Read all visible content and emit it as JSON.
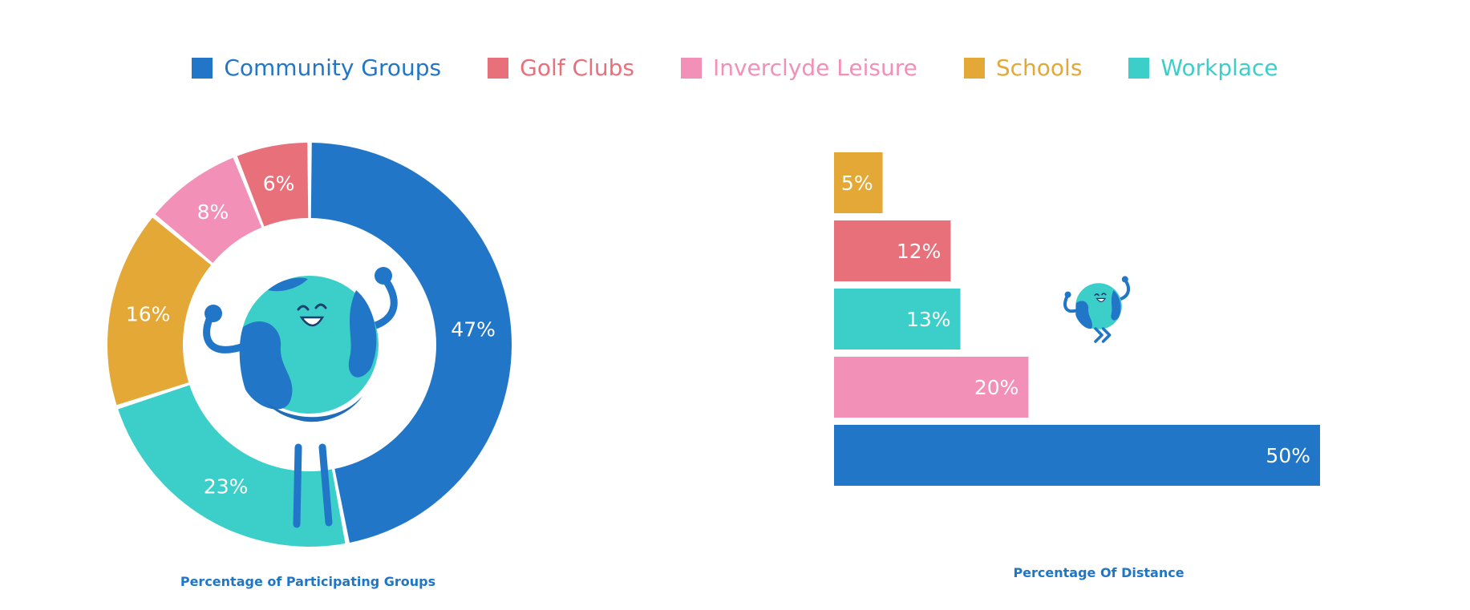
{
  "legend": [
    {
      "label": "Community Groups",
      "color": "#2176c7"
    },
    {
      "label": "Golf Clubs",
      "color": "#e8707a"
    },
    {
      "label": "Inverclyde Leisure",
      "color": "#f290b7"
    },
    {
      "label": "Schools",
      "color": "#e3a835"
    },
    {
      "label": "Workplace",
      "color": "#3ccfca"
    }
  ],
  "chart_data": [
    {
      "type": "pie",
      "title": "Percentage of Participating Groups",
      "categories": [
        "Community Groups",
        "Workplace",
        "Schools",
        "Inverclyde Leisure",
        "Golf Clubs"
      ],
      "values": [
        47,
        23,
        16,
        8,
        6
      ],
      "labels": [
        "47%",
        "23%",
        "16%",
        "8%",
        "6%"
      ],
      "colors": [
        "#2176c7",
        "#3ccfca",
        "#e3a835",
        "#f290b7",
        "#e8707a"
      ],
      "style": "donut"
    },
    {
      "type": "bar",
      "orientation": "horizontal",
      "title": "Percentage Of Distance",
      "categories": [
        "Schools",
        "Golf Clubs",
        "Workplace",
        "Inverclyde Leisure",
        "Community Groups"
      ],
      "values": [
        5,
        12,
        13,
        20,
        50
      ],
      "labels": [
        "5%",
        "12%",
        "13%",
        "20%",
        "50%"
      ],
      "colors": [
        "#e3a835",
        "#e8707a",
        "#3ccfca",
        "#f290b7",
        "#2176c7"
      ]
    }
  ],
  "icons": {
    "donut_mascot": "globe-mascot-icon",
    "bars_mascot": "globe-mascot-icon"
  }
}
